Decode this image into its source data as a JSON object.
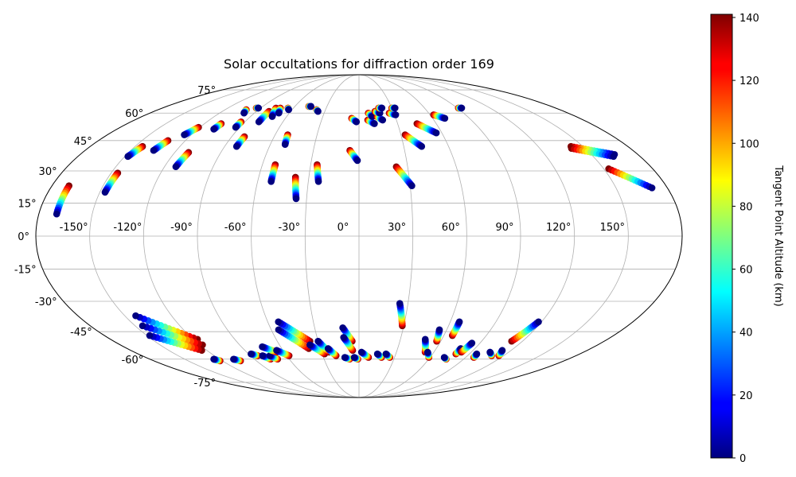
{
  "chart_data": {
    "type": "scatter",
    "projection": "mollweide",
    "title": "Solar occultations for diffraction order 169",
    "xlabel": "",
    "ylabel": "",
    "lon_ticks": [
      -150,
      -120,
      -90,
      -60,
      -30,
      0,
      30,
      60,
      90,
      120,
      150
    ],
    "lon_tick_labels": [
      "-150°",
      "-120°",
      "-90°",
      "-60°",
      "-30°",
      "0°",
      "30°",
      "60°",
      "90°",
      "120°",
      "150°"
    ],
    "lat_ticks": [
      75,
      60,
      45,
      30,
      15,
      0,
      -15,
      -30,
      -45,
      -60,
      -75
    ],
    "lat_tick_labels": [
      "75°",
      "60°",
      "45°",
      "30°",
      "15°",
      "0°",
      "-15°",
      "-30°",
      "-45°",
      "-60°",
      "-75°"
    ],
    "grid": true,
    "colorbar": {
      "label": "Tangent Point Altitude (km)",
      "colormap": "jet",
      "range": [
        0,
        141
      ],
      "ticks": [
        0,
        20,
        40,
        60,
        80,
        100,
        120,
        140
      ],
      "tick_labels": [
        "0",
        "20",
        "40",
        "60",
        "80",
        "100",
        "120",
        "140"
      ]
    },
    "tracks": [
      {
        "lon0": -170,
        "lat0": 10,
        "lon1": -170,
        "lat1": 23
      },
      {
        "lon0": -147,
        "lat0": 20,
        "lon1": -146,
        "lat1": 29
      },
      {
        "lon0": -148,
        "lat0": 37,
        "lon1": -145,
        "lat1": 42
      },
      {
        "lon0": -135,
        "lat0": 40,
        "lon1": -132,
        "lat1": 45
      },
      {
        "lon0": -125,
        "lat0": 48,
        "lon1": -121,
        "lat1": 52
      },
      {
        "lon0": -113,
        "lat0": 32,
        "lon1": -111,
        "lat1": 39
      },
      {
        "lon0": -108,
        "lat0": 51,
        "lon1": -107,
        "lat1": 54
      },
      {
        "lon0": -99,
        "lat0": 60,
        "lon1": -101,
        "lat1": 62
      },
      {
        "lon0": -93,
        "lat0": 52,
        "lon1": -93,
        "lat1": 55
      },
      {
        "lon0": -92,
        "lat0": 63,
        "lon1": -94,
        "lat1": 63
      },
      {
        "lon0": -82,
        "lat0": 42,
        "lon1": -81,
        "lat1": 47
      },
      {
        "lon0": -79,
        "lat0": 55,
        "lon1": -79,
        "lat1": 61
      },
      {
        "lon0": -72,
        "lat0": 58,
        "lon1": -76,
        "lat1": 63
      },
      {
        "lon0": -69,
        "lat0": 60,
        "lon1": -72,
        "lat1": 63
      },
      {
        "lon0": -63,
        "lat0": 62,
        "lon1": -65,
        "lat1": 63
      },
      {
        "lon0": -50,
        "lat0": 43,
        "lon1": -51,
        "lat1": 48
      },
      {
        "lon0": -52,
        "lat0": 25,
        "lon1": -52,
        "lat1": 33
      },
      {
        "lon0": -45,
        "lat0": 64,
        "lon1": -47,
        "lat1": 64
      },
      {
        "lon0": -36,
        "lat0": 17,
        "lon1": -38,
        "lat1": 27
      },
      {
        "lon0": -36,
        "lat0": 61,
        "lon1": -38,
        "lat1": 62
      },
      {
        "lon0": -24,
        "lat0": 25,
        "lon1": -26,
        "lat1": 33
      },
      {
        "lon0": -1,
        "lat0": 35,
        "lon1": -6,
        "lat1": 40
      },
      {
        "lon0": -2,
        "lat0": 55,
        "lon1": -6,
        "lat1": 57
      },
      {
        "lon0": 12,
        "lat0": 54,
        "lon1": 7,
        "lat1": 56
      },
      {
        "lon0": 11,
        "lat0": 58,
        "lon1": 8,
        "lat1": 60
      },
      {
        "lon0": 19,
        "lat0": 56,
        "lon1": 15,
        "lat1": 58
      },
      {
        "lon0": 18,
        "lat0": 60,
        "lon1": 14,
        "lat1": 61
      },
      {
        "lon0": 21,
        "lat0": 63,
        "lon1": 18,
        "lat1": 63
      },
      {
        "lon0": 31,
        "lat0": 23,
        "lon1": 23,
        "lat1": 32
      },
      {
        "lon0": 31,
        "lat0": 59,
        "lon1": 26,
        "lat1": 60
      },
      {
        "lon0": 33,
        "lat0": 63,
        "lon1": 30,
        "lat1": 63
      },
      {
        "lon0": 42,
        "lat0": 42,
        "lon1": 33,
        "lat1": 48
      },
      {
        "lon0": 56,
        "lat0": 49,
        "lon1": 45,
        "lat1": 54
      },
      {
        "lon0": 70,
        "lat0": 57,
        "lon1": 63,
        "lat1": 59
      },
      {
        "lon0": 94,
        "lat0": 63,
        "lon1": 91,
        "lat1": 63
      },
      {
        "lon0": 165,
        "lat0": 38,
        "lon1": 142,
        "lat1": 42
      },
      {
        "lon0": 163,
        "lat0": 37,
        "lon1": 141,
        "lat1": 41
      },
      {
        "lon0": 171,
        "lat0": 22,
        "lon1": 153,
        "lat1": 31
      },
      {
        "lon0": -143,
        "lat0": -37,
        "lon1": -117,
        "lat1": -49
      },
      {
        "lon0": -145,
        "lat0": -42,
        "lon1": -118,
        "lat1": -52
      },
      {
        "lon0": -148,
        "lat0": -47,
        "lon1": -124,
        "lat1": -55
      },
      {
        "lon0": -125,
        "lat0": -60,
        "lon1": -122,
        "lat1": -61
      },
      {
        "lon0": -108,
        "lat0": -60,
        "lon1": -104,
        "lat1": -61
      },
      {
        "lon0": -88,
        "lat0": -57,
        "lon1": -84,
        "lat1": -58
      },
      {
        "lon0": -80,
        "lat0": -58,
        "lon1": -76,
        "lat1": -60
      },
      {
        "lon0": -74,
        "lat0": -58,
        "lon1": -70,
        "lat1": -60
      },
      {
        "lon0": -74,
        "lat0": -53,
        "lon1": -66,
        "lat1": -56
      },
      {
        "lon0": -65,
        "lat0": -55,
        "lon1": -58,
        "lat1": -58
      },
      {
        "lon0": -55,
        "lat0": -44,
        "lon1": -39,
        "lat1": -54
      },
      {
        "lon0": -53,
        "lat0": -40,
        "lon1": -36,
        "lat1": -50
      },
      {
        "lon0": -37,
        "lat0": -52,
        "lon1": -28,
        "lat1": -57
      },
      {
        "lon0": -30,
        "lat0": -50,
        "lon1": -24,
        "lat1": -56
      },
      {
        "lon0": -24,
        "lat0": -54,
        "lon1": -19,
        "lat1": -58
      },
      {
        "lon0": -11,
        "lat0": -43,
        "lon1": -5,
        "lat1": -50
      },
      {
        "lon0": -11,
        "lat0": -48,
        "lon1": -5,
        "lat1": -55
      },
      {
        "lon0": -12,
        "lat0": -59,
        "lon1": -8,
        "lat1": -60
      },
      {
        "lon0": -4,
        "lat0": -59,
        "lon1": -1,
        "lat1": -60
      },
      {
        "lon0": 2,
        "lat0": -56,
        "lon1": 8,
        "lat1": -59
      },
      {
        "lon0": 15,
        "lat0": -57,
        "lon1": 19,
        "lat1": -59
      },
      {
        "lon0": 22,
        "lat0": -57,
        "lon1": 26,
        "lat1": -59
      },
      {
        "lon0": 25,
        "lat0": -31,
        "lon1": 29,
        "lat1": -42
      },
      {
        "lon0": 48,
        "lat0": -49,
        "lon1": 53,
        "lat1": -56
      },
      {
        "lon0": 55,
        "lat0": -44,
        "lon1": 57,
        "lat1": -50
      },
      {
        "lon0": 55,
        "lat0": -56,
        "lon1": 59,
        "lat1": -59
      },
      {
        "lon0": 66,
        "lat0": -40,
        "lon1": 66,
        "lat1": -47
      },
      {
        "lon0": 72,
        "lat0": -59,
        "lon1": 75,
        "lat1": -60
      },
      {
        "lon0": 79,
        "lat0": -54,
        "lon1": 79,
        "lat1": -57
      },
      {
        "lon0": 84,
        "lat0": -51,
        "lon1": 82,
        "lat1": -56
      },
      {
        "lon0": 96,
        "lat0": -57,
        "lon1": 97,
        "lat1": -59
      },
      {
        "lon0": 105,
        "lat0": -56,
        "lon1": 110,
        "lat1": -58
      },
      {
        "lon0": 118,
        "lat0": -40,
        "lon1": 112,
        "lat1": -50
      },
      {
        "lon0": 113,
        "lat0": -55,
        "lon1": 116,
        "lat1": -58
      }
    ]
  }
}
